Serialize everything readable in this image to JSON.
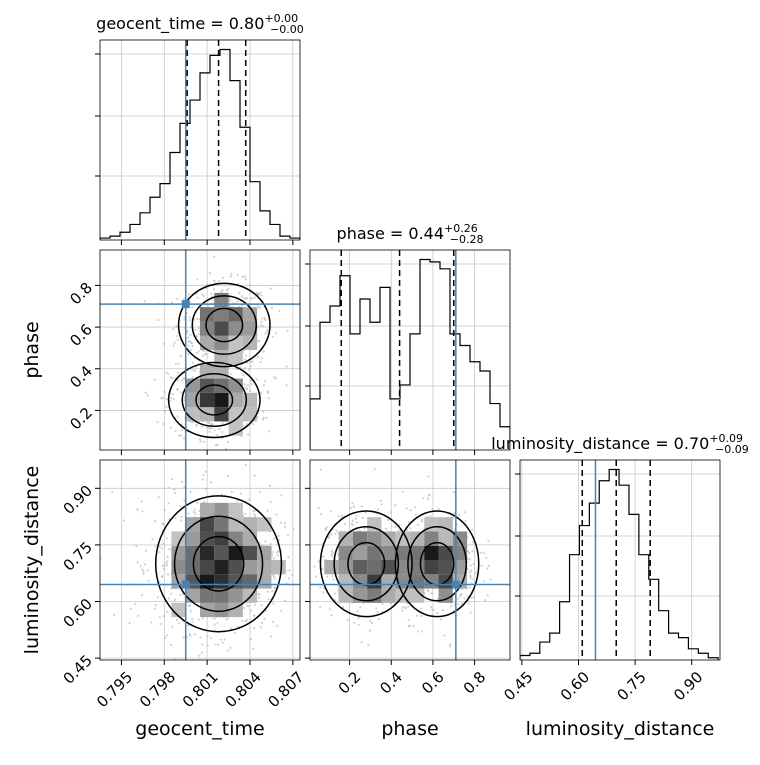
{
  "chart_data": {
    "type": "corner",
    "parameters": [
      "geocent_time",
      "phase",
      "luminosity_distance"
    ],
    "axis_labels": {
      "x": [
        "geocent_time",
        "phase",
        "luminosity_distance"
      ],
      "y": [
        "",
        "phase",
        "luminosity_distance"
      ]
    },
    "ranges": [
      [
        0.7935,
        0.8075
      ],
      [
        0.01,
        0.97
      ],
      [
        0.445,
        0.975
      ]
    ],
    "truths": [
      0.7995,
      0.71,
      0.645
    ],
    "truth_color": "#4682b4",
    "titles": [
      {
        "text": "geocent_time = 0.80",
        "sup": "+0.00",
        "sub": "−0.00"
      },
      {
        "text": "phase = 0.44",
        "sup": "+0.26",
        "sub": "−0.28"
      },
      {
        "text": "luminosity_distance = 0.70",
        "sup": "+0.09",
        "sub": "−0.09"
      }
    ],
    "quantiles": [
      [
        0.7996,
        0.8018,
        0.8037
      ],
      [
        0.16,
        0.44,
        0.7
      ],
      [
        0.61,
        0.7,
        0.79
      ]
    ],
    "ticks": {
      "geocent_time": [
        0.795,
        0.798,
        0.801,
        0.804,
        0.807
      ],
      "phase": [
        0.2,
        0.4,
        0.6,
        0.8
      ],
      "luminosity_distance": [
        0.45,
        0.6,
        0.75,
        0.9
      ]
    },
    "tick_labels": {
      "geocent_time": [
        "0.795",
        "0.798",
        "0.801",
        "0.804",
        "0.807"
      ],
      "phase": [
        "0.2",
        "0.4",
        "0.6",
        "0.8"
      ],
      "luminosity_distance": [
        "0.45",
        "0.60",
        "0.75",
        "0.90"
      ]
    },
    "histograms": [
      {
        "edges": [
          0.7935,
          0.7942,
          0.7949,
          0.7956,
          0.7963,
          0.797,
          0.7977,
          0.7984,
          0.7991,
          0.7998,
          0.8005,
          0.8012,
          0.8019,
          0.8026,
          0.8033,
          0.804,
          0.8047,
          0.8054,
          0.8061,
          0.8068,
          0.8075
        ],
        "counts": [
          1,
          2,
          4,
          8,
          14,
          22,
          29,
          45,
          60,
          72,
          86,
          95,
          98,
          82,
          58,
          30,
          15,
          8,
          2,
          1
        ]
      },
      {
        "edges": [
          0.01,
          0.058,
          0.106,
          0.154,
          0.202,
          0.25,
          0.298,
          0.346,
          0.394,
          0.442,
          0.49,
          0.538,
          0.586,
          0.634,
          0.682,
          0.73,
          0.778,
          0.826,
          0.874,
          0.922,
          0.97
        ],
        "counts": [
          22,
          55,
          62,
          75,
          50,
          65,
          55,
          70,
          22,
          28,
          50,
          82,
          81,
          78,
          50,
          45,
          38,
          34,
          20,
          10
        ]
      },
      {
        "edges": [
          0.445,
          0.4713,
          0.4975,
          0.5238,
          0.55,
          0.5763,
          0.6025,
          0.6288,
          0.655,
          0.6813,
          0.7075,
          0.7338,
          0.76,
          0.7863,
          0.8125,
          0.8388,
          0.865,
          0.8913,
          0.9175,
          0.9438,
          0.97
        ],
        "counts": [
          2,
          3,
          8,
          12,
          26,
          47,
          60,
          70,
          80,
          85,
          78,
          65,
          47,
          36,
          22,
          12,
          10,
          5,
          3,
          1
        ]
      }
    ],
    "grid": true
  }
}
